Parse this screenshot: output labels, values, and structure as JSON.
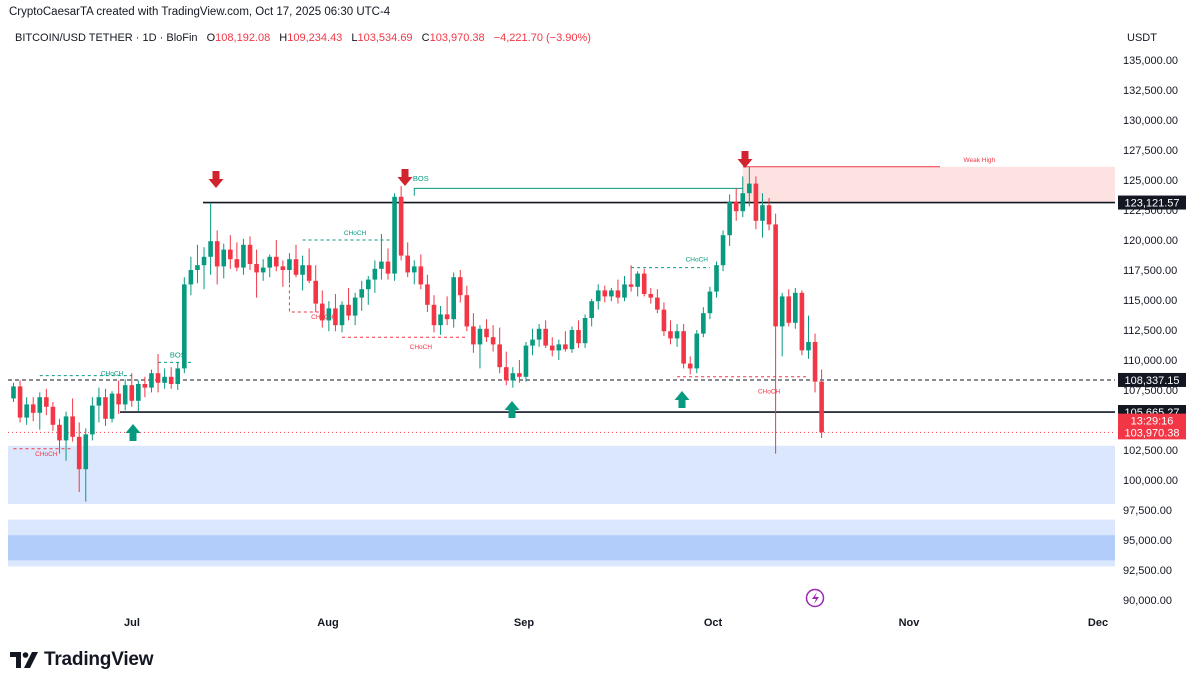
{
  "header": {
    "created_by": "CryptoCaesarTA created with TradingView.com, Oct 17, 2025 06:30 UTC-4"
  },
  "legend": {
    "symbol": "BITCOIN/USD TETHER · 1D · BloFin",
    "open": "108,192.08",
    "high": "109,234.43",
    "low": "103,534.69",
    "close": "103,970.38",
    "change": "−4,221.70 (−3.90%)"
  },
  "currency": "USDT",
  "footer": {
    "brand": "TradingView"
  },
  "colors": {
    "up": "#089981",
    "down": "#f23645",
    "demand_zone": "#dbe7fd",
    "supply_zone": "#fde2e2",
    "arrow_down": "#d1242f",
    "arrow_up": "#089981"
  },
  "chart_data": {
    "type": "candlestick",
    "title": "BITCOIN/USD TETHER · 1D · BloFin",
    "ylim": [
      90000,
      137000
    ],
    "y_ticks": [
      "135,000.00",
      "132,500.00",
      "130,000.00",
      "127,500.00",
      "125,000.00",
      "122,500.00",
      "120,000.00",
      "117,500.00",
      "115,000.00",
      "112,500.00",
      "110,000.00",
      "107,500.00",
      "105,000.00",
      "102,500.00",
      "100,000.00",
      "97,500.00",
      "95,000.00",
      "92,500.00",
      "90,000.00"
    ],
    "x_ticks": [
      "Jul",
      "Aug",
      "Sep",
      "Oct",
      "Nov",
      "Dec"
    ],
    "candles": [
      [
        106800,
        108100,
        106500,
        107800
      ],
      [
        107800,
        108300,
        104800,
        105200
      ],
      [
        105200,
        106900,
        104600,
        106300
      ],
      [
        106300,
        106900,
        104900,
        105600
      ],
      [
        105600,
        107300,
        104200,
        106900
      ],
      [
        106900,
        107600,
        105400,
        106100
      ],
      [
        106100,
        106500,
        104100,
        104600
      ],
      [
        104600,
        105100,
        102200,
        103300
      ],
      [
        103300,
        105700,
        101600,
        105300
      ],
      [
        105300,
        106800,
        103200,
        103600
      ],
      [
        103600,
        104800,
        99000,
        100900
      ],
      [
        100900,
        104300,
        98200,
        103800
      ],
      [
        103800,
        106900,
        103300,
        106200
      ],
      [
        106200,
        107700,
        104800,
        106900
      ],
      [
        106900,
        107600,
        104500,
        105100
      ],
      [
        105100,
        107400,
        104800,
        107200
      ],
      [
        107200,
        108300,
        105500,
        106300
      ],
      [
        106300,
        108400,
        105800,
        107900
      ],
      [
        107900,
        108900,
        106100,
        106600
      ],
      [
        106600,
        108300,
        105700,
        108000
      ],
      [
        108000,
        108600,
        106900,
        107700
      ],
      [
        107700,
        109200,
        107300,
        108900
      ],
      [
        108900,
        110500,
        107300,
        108100
      ],
      [
        108100,
        109300,
        107600,
        108600
      ],
      [
        108600,
        109400,
        107600,
        108000
      ],
      [
        108000,
        109800,
        107500,
        109300
      ],
      [
        109300,
        116900,
        108900,
        116300
      ],
      [
        116300,
        118600,
        115400,
        117500
      ],
      [
        117500,
        119600,
        116400,
        117900
      ],
      [
        117900,
        119400,
        115900,
        118600
      ],
      [
        118600,
        123100,
        117100,
        119900
      ],
      [
        119900,
        120800,
        116300,
        117800
      ],
      [
        117800,
        119700,
        116800,
        119200
      ],
      [
        119200,
        120400,
        117600,
        118400
      ],
      [
        118400,
        119800,
        117400,
        117700
      ],
      [
        117700,
        120100,
        117100,
        119600
      ],
      [
        119600,
        120300,
        117500,
        118000
      ],
      [
        118000,
        119200,
        115200,
        117300
      ],
      [
        117300,
        118400,
        116600,
        117700
      ],
      [
        117700,
        118800,
        116900,
        118600
      ],
      [
        118600,
        120000,
        117400,
        117800
      ],
      [
        117800,
        118300,
        116100,
        117500
      ],
      [
        117500,
        118900,
        116400,
        118400
      ],
      [
        118400,
        119600,
        116900,
        117100
      ],
      [
        117100,
        118700,
        115800,
        117900
      ],
      [
        117900,
        119300,
        116400,
        116600
      ],
      [
        116600,
        117900,
        114000,
        114700
      ],
      [
        114700,
        115800,
        112700,
        113300
      ],
      [
        113300,
        114900,
        112400,
        114300
      ],
      [
        114300,
        115500,
        112400,
        112900
      ],
      [
        112900,
        114900,
        112300,
        114600
      ],
      [
        114600,
        116000,
        113300,
        113700
      ],
      [
        113700,
        115600,
        112900,
        115200
      ],
      [
        115200,
        116600,
        114100,
        115900
      ],
      [
        115900,
        117000,
        114600,
        116700
      ],
      [
        116700,
        118300,
        115600,
        117600
      ],
      [
        117600,
        120500,
        116700,
        118200
      ],
      [
        118200,
        119300,
        116700,
        117200
      ],
      [
        117200,
        123900,
        116600,
        123600
      ],
      [
        123600,
        124500,
        118300,
        118700
      ],
      [
        118700,
        119800,
        116900,
        117300
      ],
      [
        117300,
        118300,
        116300,
        117800
      ],
      [
        117800,
        118800,
        115900,
        116300
      ],
      [
        116300,
        117100,
        114000,
        114600
      ],
      [
        114600,
        115400,
        112300,
        112900
      ],
      [
        112900,
        114500,
        112100,
        113800
      ],
      [
        113800,
        115300,
        112900,
        113400
      ],
      [
        113400,
        117300,
        112700,
        116900
      ],
      [
        116900,
        117500,
        114800,
        115400
      ],
      [
        115400,
        116200,
        112400,
        112800
      ],
      [
        112800,
        113900,
        110600,
        111300
      ],
      [
        111300,
        112900,
        109300,
        112600
      ],
      [
        112600,
        113400,
        111500,
        111900
      ],
      [
        111900,
        112900,
        110700,
        111300
      ],
      [
        111300,
        112700,
        108900,
        109400
      ],
      [
        109400,
        110700,
        107900,
        108300
      ],
      [
        108300,
        109400,
        107700,
        108900
      ],
      [
        108900,
        110000,
        108100,
        108600
      ],
      [
        108600,
        111500,
        108200,
        111200
      ],
      [
        111200,
        112600,
        110400,
        111700
      ],
      [
        111700,
        113000,
        111100,
        112600
      ],
      [
        112600,
        113300,
        111000,
        111200
      ],
      [
        111200,
        111900,
        110300,
        110800
      ],
      [
        110800,
        111700,
        110000,
        111300
      ],
      [
        111300,
        112400,
        110700,
        110900
      ],
      [
        110900,
        112800,
        110600,
        112500
      ],
      [
        112500,
        113300,
        111000,
        111400
      ],
      [
        111400,
        113800,
        111000,
        113500
      ],
      [
        113500,
        115100,
        112800,
        114900
      ],
      [
        114900,
        116300,
        114200,
        115800
      ],
      [
        115800,
        116200,
        114800,
        115300
      ],
      [
        115300,
        116000,
        114900,
        115800
      ],
      [
        115800,
        116700,
        114700,
        115200
      ],
      [
        115200,
        117000,
        114900,
        116300
      ],
      [
        116300,
        117900,
        115700,
        116100
      ],
      [
        116100,
        117400,
        115300,
        117200
      ],
      [
        117200,
        117600,
        115300,
        115500
      ],
      [
        115500,
        116000,
        114700,
        115200
      ],
      [
        115200,
        115900,
        113900,
        114200
      ],
      [
        114200,
        114800,
        112000,
        112400
      ],
      [
        112400,
        113300,
        111300,
        111800
      ],
      [
        111800,
        113000,
        111100,
        112400
      ],
      [
        112400,
        113000,
        109300,
        109700
      ],
      [
        109700,
        110300,
        108800,
        109300
      ],
      [
        109300,
        112500,
        108900,
        112200
      ],
      [
        112200,
        114400,
        111900,
        113900
      ],
      [
        113900,
        116100,
        113400,
        115700
      ],
      [
        115700,
        118200,
        115200,
        117900
      ],
      [
        117900,
        120800,
        117400,
        120400
      ],
      [
        120400,
        123800,
        119500,
        123200
      ],
      [
        123200,
        124300,
        121600,
        122400
      ],
      [
        122400,
        125300,
        121900,
        123900
      ],
      [
        123900,
        126100,
        122800,
        124700
      ],
      [
        124700,
        125300,
        120900,
        121600
      ],
      [
        121600,
        123900,
        120200,
        122900
      ],
      [
        122900,
        123500,
        120800,
        121300
      ],
      [
        121300,
        122200,
        102200,
        112800
      ],
      [
        112800,
        115600,
        110300,
        115300
      ],
      [
        115300,
        115900,
        112800,
        113100
      ],
      [
        113100,
        116000,
        112600,
        115600
      ],
      [
        115600,
        115800,
        110400,
        110800
      ],
      [
        110800,
        113700,
        110100,
        111500
      ],
      [
        111500,
        112200,
        107300,
        108200
      ],
      [
        108200,
        109200,
        103500,
        103970
      ]
    ],
    "levels": [
      {
        "name": "resistance",
        "value": 123121.57
      },
      {
        "name": "support",
        "value": 105665.27
      },
      {
        "name": "dashed-level",
        "value": 108337.15
      },
      {
        "name": "bos-top",
        "value": 124300
      }
    ],
    "price_labels": [
      {
        "text": "123,121.57",
        "value": 123121.57,
        "style": "dark"
      },
      {
        "text": "108,337.15",
        "value": 108337.15,
        "style": "dark"
      },
      {
        "text": "105,665.27",
        "value": 105665.27,
        "style": "dark"
      },
      {
        "text": "13:29:16",
        "value": 104950,
        "style": "red"
      },
      {
        "text": "103,970.38",
        "value": 103970.38,
        "style": "red"
      }
    ],
    "zones": [
      {
        "name": "demand-zone-upper",
        "y_top": 102850,
        "y_bottom": 98000
      },
      {
        "name": "demand-zone-lower-outer",
        "y_top": 96700,
        "y_bottom": 92800
      },
      {
        "name": "demand-zone-lower-inner",
        "y_top": 95400,
        "y_bottom": 93300
      },
      {
        "name": "supply-zone",
        "y_top": 126100,
        "y_bottom": 123121.57
      }
    ],
    "annotations": [
      {
        "text": "BOS",
        "color": "#089981",
        "x_index": 62,
        "value": 124900
      },
      {
        "text": "BOS",
        "color": "#089981",
        "x_index": 25,
        "value": 110200
      },
      {
        "text": "CHoCH",
        "color": "#089981",
        "x_index": 15,
        "value": 108700
      },
      {
        "text": "CHoCH",
        "color": "#089981",
        "x_index": 52,
        "value": 120400
      },
      {
        "text": "CHoCH",
        "color": "#089981",
        "x_index": 104,
        "value": 118200
      },
      {
        "text": "CHoCH",
        "color": "#f23645",
        "x_index": 5,
        "value": 102000
      },
      {
        "text": "CHoCH",
        "color": "#f23645",
        "x_index": 47,
        "value": 113400
      },
      {
        "text": "CHoCH",
        "color": "#f23645",
        "x_index": 62,
        "value": 110900
      },
      {
        "text": "CHoCH",
        "color": "#f23645",
        "x_index": 115,
        "value": 107200
      },
      {
        "text": "Weak High",
        "color": "#f23645",
        "x_index": 147,
        "value": 126500
      }
    ]
  }
}
